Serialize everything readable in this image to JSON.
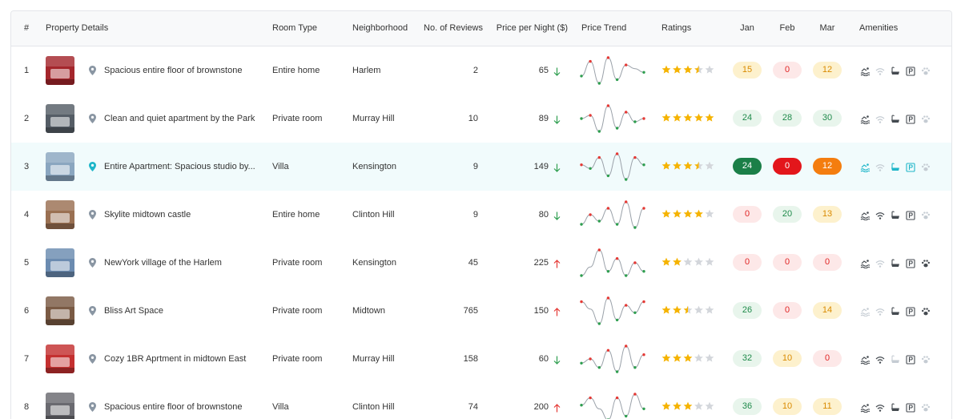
{
  "columns": {
    "idx": "#",
    "details": "Property Details",
    "room": "Room Type",
    "hood": "Neighborhood",
    "reviews": "No. of Reviews",
    "price": "Price per Night ($)",
    "trend": "Price Trend",
    "ratings": "Ratings",
    "jan": "Jan",
    "feb": "Feb",
    "mar": "Mar",
    "amenities": "Amenities"
  },
  "amenity_icons": [
    "pool-icon",
    "wifi-icon",
    "bathtub-icon",
    "parking-icon",
    "pets-icon"
  ],
  "colors": {
    "green_soft": "#e8f5ec",
    "red_soft": "#fde8e8",
    "yellow_soft": "#fdf1cd",
    "green_strong": "#1b7f48",
    "red_strong": "#e3161b",
    "orange_strong": "#f47d0f",
    "star": "#f5b301",
    "accent": "#1fb6c9"
  },
  "rows": [
    {
      "idx": "1",
      "name": "Spacious entire floor of brownstone",
      "room": "Entire home",
      "hood": "Harlem",
      "reviews": "2",
      "price": "65",
      "dir": "down",
      "rating": 3.5,
      "jan": "15",
      "jan_c": "y",
      "feb": "0",
      "feb_c": "r",
      "mar": "12",
      "mar_c": "y",
      "amenities": [
        1,
        0,
        1,
        1,
        0
      ],
      "trend": [
        5,
        9,
        3,
        10,
        4,
        8,
        7,
        6
      ],
      "thumb": "#a4262c"
    },
    {
      "idx": "2",
      "name": "Clean and quiet apartment by the Park",
      "room": "Private room",
      "hood": "Murray Hill",
      "reviews": "10",
      "price": "89",
      "dir": "down",
      "rating": 5,
      "jan": "24",
      "jan_c": "g",
      "feb": "28",
      "feb_c": "g",
      "mar": "30",
      "mar_c": "g",
      "amenities": [
        1,
        0,
        1,
        1,
        0
      ],
      "trend": [
        6,
        7,
        2,
        10,
        3,
        8,
        5,
        6
      ],
      "thumb": "#555d66"
    },
    {
      "idx": "3",
      "name": "Entire Apartment: Spacious studio by...",
      "room": "Villa",
      "hood": "Kensington",
      "reviews": "9",
      "price": "149",
      "dir": "down",
      "rating": 3.5,
      "jan": "24",
      "jan_c": "G",
      "feb": "0",
      "feb_c": "R",
      "mar": "12",
      "mar_c": "O",
      "amenities": [
        1,
        0,
        1,
        1,
        0
      ],
      "trend": [
        6,
        5,
        8,
        3,
        9,
        2,
        8,
        6
      ],
      "thumb": "#8aa6c0",
      "active": true
    },
    {
      "idx": "4",
      "name": "Skylite midtown castle",
      "room": "Entire home",
      "hood": "Clinton Hill",
      "reviews": "9",
      "price": "80",
      "dir": "down",
      "rating": 4,
      "jan": "0",
      "jan_c": "r",
      "feb": "20",
      "feb_c": "g",
      "mar": "13",
      "mar_c": "y",
      "amenities": [
        1,
        1,
        1,
        1,
        0
      ],
      "trend": [
        3,
        6,
        4,
        8,
        3,
        10,
        2,
        8
      ],
      "thumb": "#9a7052"
    },
    {
      "idx": "5",
      "name": "NewYork village of the Harlem",
      "room": "Private room",
      "hood": "Kensington",
      "reviews": "45",
      "price": "225",
      "dir": "up",
      "rating": 2,
      "jan": "0",
      "jan_c": "r",
      "feb": "0",
      "feb_c": "r",
      "mar": "0",
      "mar_c": "r",
      "amenities": [
        1,
        0,
        1,
        1,
        1
      ],
      "trend": [
        3,
        5,
        9,
        4,
        7,
        3,
        6,
        4
      ],
      "thumb": "#6b8bb0"
    },
    {
      "idx": "6",
      "name": "Bliss Art Space",
      "room": "Private room",
      "hood": "Midtown",
      "reviews": "765",
      "price": "150",
      "dir": "up",
      "rating": 2.5,
      "jan": "26",
      "jan_c": "g",
      "feb": "0",
      "feb_c": "r",
      "mar": "14",
      "mar_c": "y",
      "amenities": [
        0,
        0,
        1,
        1,
        1
      ],
      "trend": [
        8,
        6,
        2,
        9,
        3,
        7,
        5,
        8
      ],
      "thumb": "#7a5a44"
    },
    {
      "idx": "7",
      "name": "Cozy 1BR Aprtment in midtown East",
      "room": "Private room",
      "hood": "Murray Hill",
      "reviews": "158",
      "price": "60",
      "dir": "down",
      "rating": 3,
      "jan": "32",
      "jan_c": "g",
      "feb": "10",
      "feb_c": "y",
      "mar": "0",
      "mar_c": "r",
      "amenities": [
        1,
        1,
        0,
        1,
        0
      ],
      "trend": [
        4,
        5,
        3,
        7,
        2,
        8,
        3,
        6
      ],
      "thumb": "#c43030"
    },
    {
      "idx": "8",
      "name": "Spacious entire floor of brownstone",
      "room": "Villa",
      "hood": "Clinton Hill",
      "reviews": "74",
      "price": "200",
      "dir": "up",
      "rating": 3,
      "jan": "36",
      "jan_c": "g",
      "feb": "10",
      "feb_c": "y",
      "mar": "11",
      "mar_c": "y",
      "amenities": [
        1,
        1,
        1,
        1,
        0
      ],
      "trend": [
        6,
        8,
        5,
        2,
        8,
        3,
        9,
        5
      ],
      "thumb": "#6a6a70"
    }
  ]
}
